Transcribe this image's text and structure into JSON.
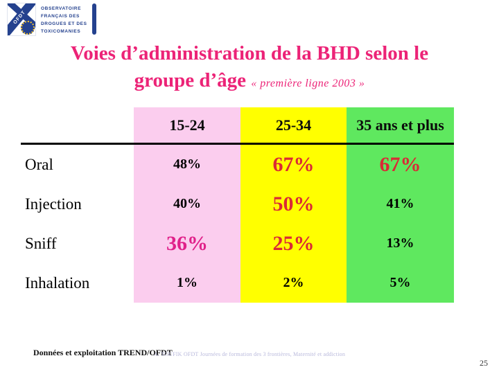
{
  "logo": {
    "acronym": "OFDT",
    "lines": [
      "OBSERVATOIRE",
      "FRANÇAIS DES",
      "DROGUES ET DES",
      "TOXICOMANIES"
    ]
  },
  "title": {
    "line1": "Voies d’administration de la BHD selon le",
    "line2": "groupe d’âge",
    "subtitle": "« première ligne 2003 »",
    "color": "#EC2377"
  },
  "table": {
    "columns": [
      {
        "label": "15-24",
        "bg": "#FBCDEE"
      },
      {
        "label": "25-34",
        "bg": "#FFFF00"
      },
      {
        "label": "35 ans et plus",
        "bg": "#5FE85F"
      }
    ],
    "rows": [
      {
        "label": "Oral",
        "values": [
          {
            "text": "48%",
            "emphasis": "none"
          },
          {
            "text": "67%",
            "emphasis": "red"
          },
          {
            "text": "67%",
            "emphasis": "red"
          }
        ]
      },
      {
        "label": "Injection",
        "values": [
          {
            "text": "40%",
            "emphasis": "none"
          },
          {
            "text": "50%",
            "emphasis": "red"
          },
          {
            "text": "41%",
            "emphasis": "none"
          }
        ]
      },
      {
        "label": "Sniff",
        "values": [
          {
            "text": "36%",
            "emphasis": "pink"
          },
          {
            "text": "25%",
            "emphasis": "red"
          },
          {
            "text": "13%",
            "emphasis": "none"
          }
        ]
      },
      {
        "label": "Inhalation",
        "values": [
          {
            "text": "1%",
            "emphasis": "none"
          },
          {
            "text": "2%",
            "emphasis": "none"
          },
          {
            "text": "5%",
            "emphasis": "none"
          }
        ]
      }
    ]
  },
  "chart_data": {
    "type": "table",
    "title": "Voies d’administration de la BHD selon le groupe d’âge « première ligne 2003 »",
    "categories": [
      "15-24",
      "25-34",
      "35 ans et plus"
    ],
    "series": [
      {
        "name": "Oral",
        "values": [
          48,
          67,
          67
        ]
      },
      {
        "name": "Injection",
        "values": [
          40,
          50,
          41
        ]
      },
      {
        "name": "Sniff",
        "values": [
          36,
          25,
          13
        ]
      },
      {
        "name": "Inhalation",
        "values": [
          1,
          2,
          5
        ]
      }
    ],
    "unit": "%"
  },
  "footer": {
    "left": "Données et exploitation TREND/OFDT",
    "center": "A. TOUFIK OFDT Journées de formation des 3 frontières, Maternité et addiction",
    "page": "25"
  },
  "colors": {
    "title_pink": "#EC2377",
    "value_red": "#DA2A35",
    "value_pink": "#E0218A",
    "col_pink": "#FBCDEE",
    "col_yellow": "#FFFF00",
    "col_green": "#5FE85F",
    "logo_navy": "#24418E"
  }
}
